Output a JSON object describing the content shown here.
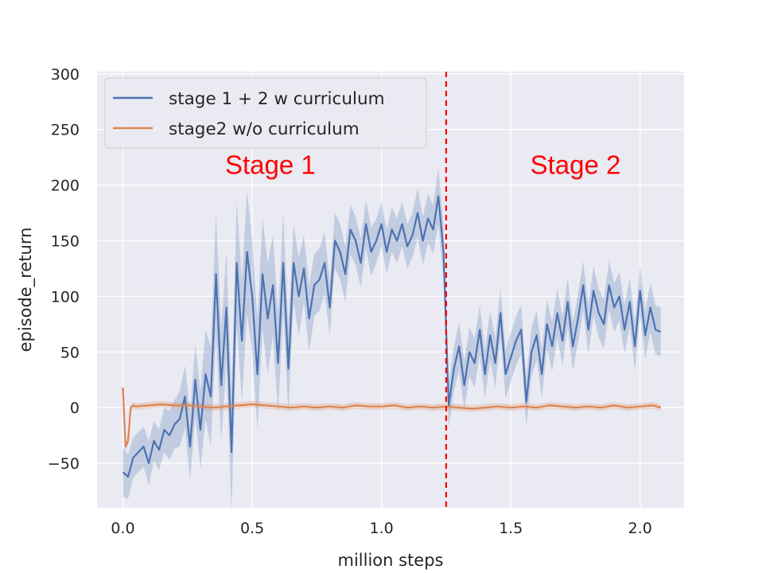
{
  "chart_data": {
    "type": "line",
    "title": "",
    "xlabel": "million steps",
    "ylabel": "episode_return",
    "xlim": [
      -0.1,
      2.17
    ],
    "ylim": [
      -90,
      302
    ],
    "xticks": [
      0.0,
      0.5,
      1.0,
      1.5,
      2.0
    ],
    "xtick_labels": [
      "0.0",
      "0.5",
      "1.0",
      "1.5",
      "2.0"
    ],
    "yticks": [
      -50,
      0,
      50,
      100,
      150,
      200,
      250,
      300
    ],
    "ytick_labels": [
      "−50",
      "0",
      "50",
      "100",
      "150",
      "200",
      "250",
      "300"
    ],
    "grid": true,
    "legend": "upper-left",
    "background_color": "#eaeaf2",
    "series": [
      {
        "name": "stage 1 + 2 w curriculum",
        "color": "#4c72b0",
        "x": [
          0.0,
          0.02,
          0.04,
          0.06,
          0.08,
          0.1,
          0.12,
          0.14,
          0.16,
          0.18,
          0.2,
          0.22,
          0.24,
          0.26,
          0.28,
          0.3,
          0.32,
          0.34,
          0.36,
          0.38,
          0.4,
          0.42,
          0.44,
          0.46,
          0.48,
          0.5,
          0.52,
          0.54,
          0.56,
          0.58,
          0.6,
          0.62,
          0.64,
          0.66,
          0.68,
          0.7,
          0.72,
          0.74,
          0.76,
          0.78,
          0.8,
          0.82,
          0.84,
          0.86,
          0.88,
          0.9,
          0.92,
          0.94,
          0.96,
          0.98,
          1.0,
          1.02,
          1.04,
          1.06,
          1.08,
          1.1,
          1.12,
          1.14,
          1.16,
          1.18,
          1.2,
          1.22,
          1.24,
          1.26,
          1.28,
          1.3,
          1.32,
          1.34,
          1.36,
          1.38,
          1.4,
          1.42,
          1.44,
          1.46,
          1.48,
          1.5,
          1.52,
          1.54,
          1.56,
          1.58,
          1.6,
          1.62,
          1.64,
          1.66,
          1.68,
          1.7,
          1.72,
          1.74,
          1.76,
          1.78,
          1.8,
          1.82,
          1.84,
          1.86,
          1.88,
          1.9,
          1.92,
          1.94,
          1.96,
          1.98,
          2.0,
          2.02,
          2.04,
          2.06,
          2.08
        ],
        "values": [
          -58,
          -62,
          -45,
          -40,
          -35,
          -50,
          -30,
          -38,
          -20,
          -25,
          -15,
          -10,
          10,
          -35,
          25,
          -20,
          30,
          10,
          120,
          20,
          90,
          -40,
          130,
          60,
          140,
          100,
          30,
          120,
          80,
          110,
          40,
          130,
          35,
          130,
          100,
          125,
          80,
          110,
          115,
          130,
          90,
          150,
          140,
          120,
          160,
          150,
          130,
          165,
          140,
          150,
          165,
          140,
          160,
          150,
          165,
          145,
          155,
          175,
          150,
          170,
          160,
          190,
          140,
          2,
          35,
          55,
          20,
          50,
          40,
          70,
          30,
          65,
          40,
          85,
          30,
          45,
          60,
          70,
          5,
          50,
          65,
          30,
          75,
          55,
          85,
          60,
          95,
          55,
          80,
          110,
          70,
          105,
          85,
          75,
          110,
          90,
          100,
          70,
          95,
          55,
          105,
          65,
          90,
          70,
          68
        ],
        "band": [
          22,
          20,
          18,
          18,
          18,
          20,
          18,
          18,
          20,
          22,
          22,
          25,
          28,
          30,
          32,
          35,
          40,
          45,
          55,
          50,
          50,
          55,
          55,
          55,
          55,
          50,
          50,
          50,
          50,
          45,
          45,
          45,
          40,
          35,
          35,
          30,
          30,
          28,
          28,
          28,
          25,
          25,
          25,
          25,
          22,
          22,
          22,
          22,
          22,
          20,
          20,
          20,
          20,
          20,
          20,
          20,
          20,
          22,
          22,
          22,
          22,
          25,
          25,
          20,
          20,
          22,
          22,
          22,
          22,
          22,
          22,
          22,
          22,
          22,
          22,
          22,
          22,
          22,
          22,
          22,
          22,
          22,
          22,
          22,
          22,
          22,
          22,
          22,
          22,
          22,
          22,
          22,
          22,
          22,
          22,
          22,
          22,
          22,
          22,
          22,
          22,
          22,
          22,
          22,
          22
        ]
      },
      {
        "name": "stage2 w/o curriculum",
        "color": "#dd8452",
        "x": [
          0.0,
          0.01,
          0.02,
          0.03,
          0.04,
          0.05,
          0.1,
          0.15,
          0.2,
          0.25,
          0.3,
          0.35,
          0.4,
          0.45,
          0.5,
          0.55,
          0.6,
          0.65,
          0.7,
          0.75,
          0.8,
          0.85,
          0.9,
          0.95,
          1.0,
          1.05,
          1.1,
          1.15,
          1.2,
          1.25,
          1.3,
          1.35,
          1.4,
          1.45,
          1.5,
          1.55,
          1.6,
          1.65,
          1.7,
          1.75,
          1.8,
          1.85,
          1.9,
          1.95,
          2.0,
          2.05,
          2.08
        ],
        "values": [
          18,
          -35,
          -30,
          0,
          2,
          1,
          2,
          3,
          2,
          2,
          1,
          0,
          1,
          2,
          3,
          2,
          1,
          0,
          1,
          0,
          1,
          0,
          2,
          1,
          1,
          2,
          0,
          1,
          0,
          1,
          0,
          -1,
          0,
          1,
          0,
          1,
          0,
          2,
          1,
          0,
          1,
          0,
          2,
          0,
          1,
          2,
          0
        ],
        "band": [
          3,
          4,
          4,
          3,
          3,
          3,
          3,
          3,
          3,
          3,
          3,
          3,
          3,
          3,
          3,
          3,
          3,
          3,
          3,
          3,
          3,
          3,
          3,
          3,
          3,
          3,
          3,
          3,
          3,
          3,
          3,
          3,
          3,
          3,
          3,
          3,
          3,
          3,
          3,
          3,
          3,
          3,
          3,
          3,
          3,
          3,
          3
        ]
      }
    ],
    "vline": {
      "x": 1.25,
      "color": "#ff0000",
      "style": "dashed"
    },
    "annotations": [
      {
        "text": "Stage 1",
        "x": 0.57,
        "y": 210
      },
      {
        "text": "Stage 2",
        "x": 1.75,
        "y": 210
      }
    ]
  }
}
